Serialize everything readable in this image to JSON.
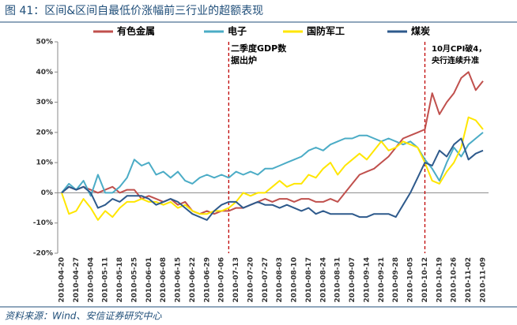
{
  "title": "图 41：区间&区间自最低价涨幅前三行业的超额表现",
  "source": "资料来源：Wind、安信证券研究中心",
  "chart_data": {
    "type": "line",
    "categories": [
      "2010-04-20",
      null,
      "2010-04-27",
      null,
      "2010-05-04",
      null,
      "2010-05-11",
      null,
      "2010-05-18",
      null,
      "2010-05-25",
      null,
      "2010-06-01",
      null,
      "2010-06-08",
      null,
      "2010-06-15",
      null,
      "2010-06-22",
      null,
      "2010-06-29",
      null,
      "2010-07-06",
      null,
      "2010-07-13",
      null,
      "2010-07-20",
      null,
      "2010-07-27",
      null,
      "2010-08-03",
      null,
      "2010-08-10",
      null,
      "2010-08-17",
      null,
      "2010-08-24",
      null,
      "2010-08-31",
      null,
      "2010-09-07",
      null,
      "2010-09-14",
      null,
      "2010-09-21",
      null,
      "2010-09-28",
      null,
      "2010-10-05",
      null,
      "2010-10-12",
      null,
      "2010-10-19",
      null,
      "2010-10-26",
      null,
      "2010-11-02",
      null,
      "2010-11-09"
    ],
    "series": [
      {
        "name": "有色金属",
        "color": "#c0504d",
        "values": [
          0,
          2,
          1,
          2,
          1,
          0,
          1,
          2,
          0,
          1,
          1,
          -2,
          -1,
          -2,
          -3,
          -2,
          -4,
          -3,
          -6,
          -7,
          -6,
          -7,
          -6,
          -6,
          -5,
          -5,
          -4,
          -3,
          -2,
          -3,
          -2,
          -2,
          -3,
          -2,
          -2,
          -3,
          -3,
          -2,
          -3,
          0,
          3,
          6,
          7,
          8,
          10,
          12,
          15,
          18,
          19,
          20,
          21,
          33,
          26,
          30,
          33,
          38,
          40,
          34,
          37
        ]
      },
      {
        "name": "电子",
        "color": "#4bacc6",
        "values": [
          0,
          3,
          1,
          4,
          -1,
          6,
          0,
          0,
          2,
          5,
          11,
          9,
          10,
          6,
          7,
          5,
          7,
          4,
          3,
          5,
          6,
          5,
          6,
          5,
          7,
          6,
          7,
          6,
          8,
          8,
          9,
          10,
          11,
          12,
          14,
          15,
          14,
          16,
          17,
          18,
          18,
          19,
          19,
          18,
          17,
          18,
          17,
          16,
          17,
          15,
          11,
          8,
          4,
          10,
          15,
          12,
          16,
          18,
          20
        ]
      },
      {
        "name": "国防军工",
        "color": "#ffe600",
        "values": [
          0,
          -7,
          -6,
          -2,
          -5,
          -9,
          -6,
          -8,
          -5,
          -3,
          -3,
          -2,
          -3,
          -3,
          -4,
          -3,
          -5,
          -4,
          -6,
          -7,
          -7,
          -6,
          -6,
          -5,
          -3,
          0,
          -1,
          0,
          0,
          2,
          4,
          2,
          3,
          3,
          6,
          5,
          8,
          10,
          6,
          9,
          11,
          13,
          11,
          14,
          17,
          14,
          15,
          17,
          16,
          15,
          10,
          4,
          3,
          7,
          10,
          15,
          25,
          24,
          21
        ]
      },
      {
        "name": "煤炭",
        "color": "#2e5a8c",
        "values": [
          0,
          2,
          1,
          2,
          0,
          -5,
          -4,
          -2,
          -3,
          -1,
          -1,
          -1,
          -2,
          -4,
          -3,
          -2,
          -3,
          -5,
          -7,
          -8,
          -9,
          -6,
          -4,
          -3,
          -3,
          -5,
          -4,
          -3,
          -4,
          -4,
          -5,
          -4,
          -5,
          -6,
          -5,
          -7,
          -6,
          -7,
          -7,
          -7,
          -7,
          -8,
          -8,
          -7,
          -7,
          -7,
          -8,
          -4,
          0,
          5,
          10,
          9,
          14,
          12,
          16,
          18,
          11,
          13,
          14
        ]
      }
    ],
    "ylim": [
      -20,
      50
    ],
    "yticks": [
      {
        "value": -20,
        "label": "-20%"
      },
      {
        "value": -10,
        "label": "-10%"
      },
      {
        "value": 0,
        "label": "0%"
      },
      {
        "value": 10,
        "label": "10%"
      },
      {
        "value": 20,
        "label": "20%"
      },
      {
        "value": 30,
        "label": "30%"
      },
      {
        "value": 40,
        "label": "40%"
      },
      {
        "value": 50,
        "label": "50%"
      }
    ],
    "grid": false,
    "legend": "top",
    "annotations": [
      {
        "lines": [
          "二季度GDP数",
          "据出炉"
        ]
      },
      {
        "lines": [
          "10月CPI破4，",
          "央行连续升准"
        ]
      }
    ]
  }
}
